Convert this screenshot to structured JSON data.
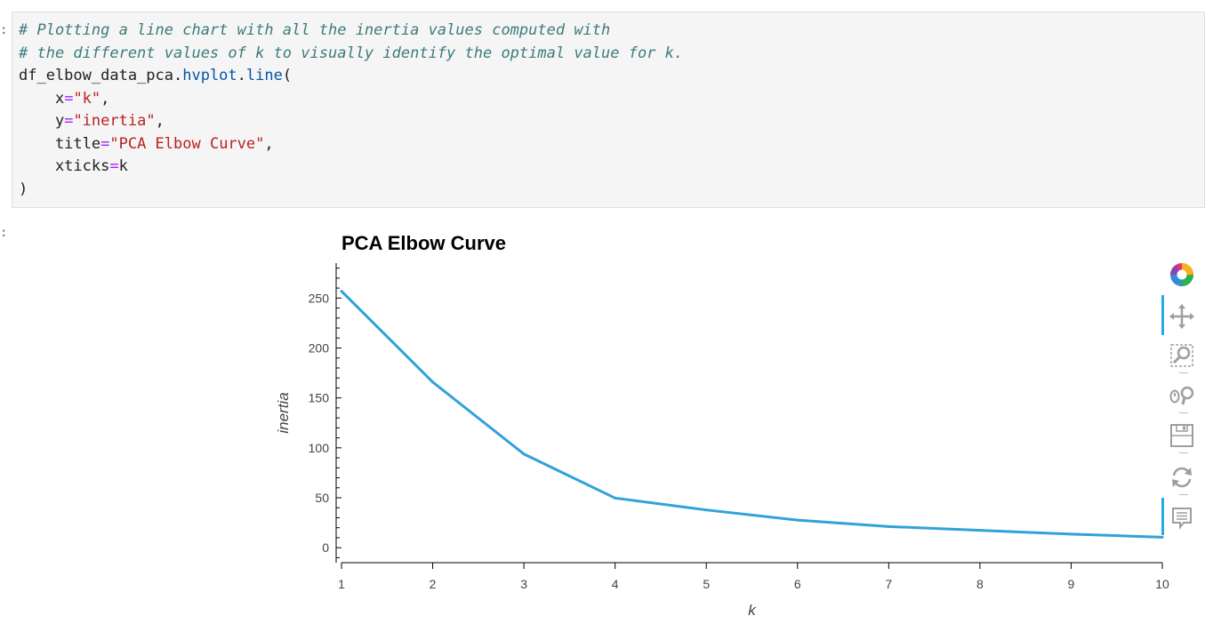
{
  "notebook": {
    "input_prompt": ":",
    "output_prompt": ":"
  },
  "code_cell": {
    "lines": [
      [
        {
          "t": "# Plotting a line chart with all the inertia values computed with",
          "c": "c-comment"
        }
      ],
      [
        {
          "t": "# the different values of k to visually identify the optimal value for k.",
          "c": "c-comment"
        }
      ],
      [
        {
          "t": "df_elbow_data_pca.",
          "c": ""
        },
        {
          "t": "hvplot",
          "c": "c-attr"
        },
        {
          "t": ".",
          "c": ""
        },
        {
          "t": "line",
          "c": "c-attr"
        },
        {
          "t": "(",
          "c": ""
        }
      ],
      [
        {
          "t": "    x",
          "c": ""
        },
        {
          "t": "=",
          "c": "c-op"
        },
        {
          "t": "\"k\"",
          "c": "c-str"
        },
        {
          "t": ",",
          "c": ""
        }
      ],
      [
        {
          "t": "    y",
          "c": ""
        },
        {
          "t": "=",
          "c": "c-op"
        },
        {
          "t": "\"inertia\"",
          "c": "c-str"
        },
        {
          "t": ",",
          "c": ""
        }
      ],
      [
        {
          "t": "    title",
          "c": ""
        },
        {
          "t": "=",
          "c": "c-op"
        },
        {
          "t": "\"PCA Elbow Curve\"",
          "c": "c-str"
        },
        {
          "t": ",",
          "c": ""
        }
      ],
      [
        {
          "t": "    xticks",
          "c": ""
        },
        {
          "t": "=",
          "c": "c-op"
        },
        {
          "t": "k",
          "c": ""
        }
      ],
      [
        {
          "t": ")",
          "c": ""
        }
      ]
    ]
  },
  "chart_data": {
    "type": "line",
    "title": "PCA Elbow Curve",
    "xlabel": "k",
    "ylabel": "inertia",
    "x": [
      1,
      2,
      3,
      4,
      5,
      6,
      7,
      8,
      9,
      10
    ],
    "series": [
      {
        "values": [
          256.9,
          165.9,
          93.8,
          49.7,
          37.8,
          27.6,
          21.2,
          17.4,
          13.6,
          10.5
        ]
      }
    ],
    "xlim": [
      1,
      10
    ],
    "ylim": [
      -15,
      285
    ],
    "xticks": [
      "1",
      "2",
      "3",
      "4",
      "5",
      "6",
      "7",
      "8",
      "9",
      "10"
    ],
    "yticks": [
      "0",
      "50",
      "100",
      "150",
      "200",
      "250"
    ],
    "line_color": "#30a2da",
    "grid": false
  },
  "toolbar": {
    "accent_color": "#26aae1",
    "tools": [
      {
        "name": "bokeh-logo-icon",
        "active": false,
        "interactable": true
      },
      {
        "name": "pan-tool-icon",
        "active": true,
        "interactable": true
      },
      {
        "name": "box-zoom-tool-icon",
        "active": false,
        "interactable": true
      },
      {
        "name": "wheel-zoom-tool-icon",
        "active": false,
        "interactable": true
      },
      {
        "name": "save-tool-icon",
        "active": false,
        "interactable": true
      },
      {
        "name": "reset-tool-icon",
        "active": false,
        "interactable": true
      },
      {
        "name": "hover-tool-icon",
        "active": true,
        "interactable": true
      }
    ]
  }
}
